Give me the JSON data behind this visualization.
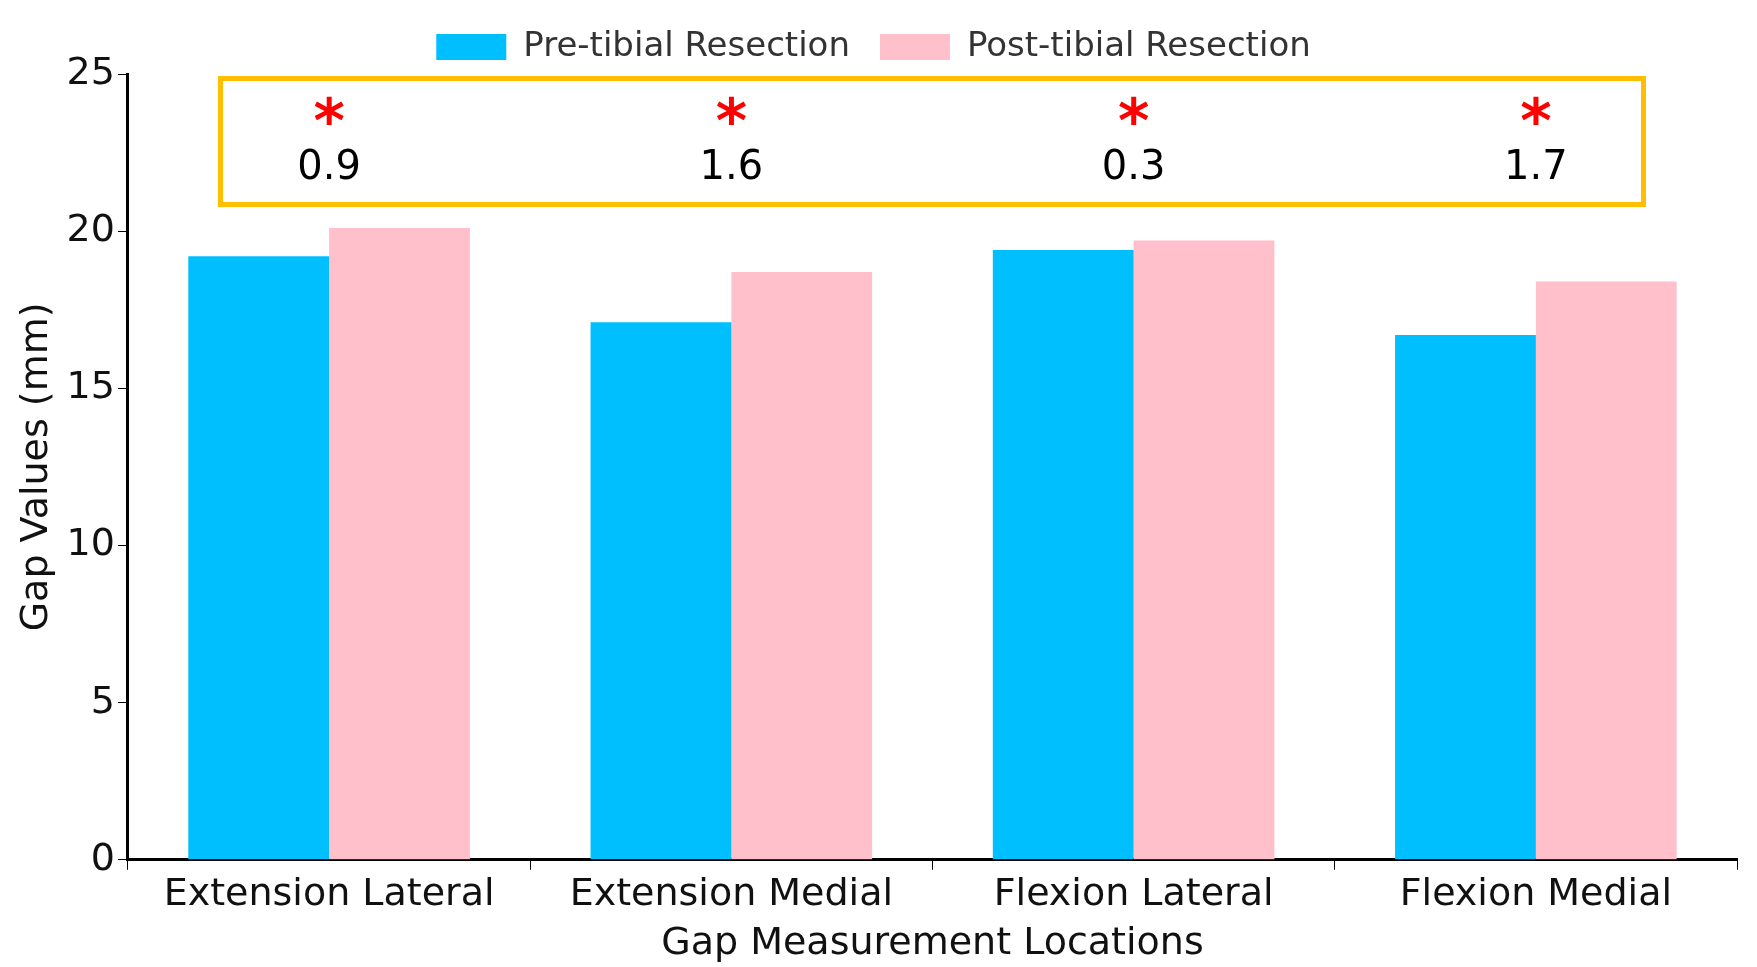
{
  "chart_data": {
    "type": "bar",
    "xlabel": "Gap Measurement Locations",
    "ylabel": "Gap Values (mm)",
    "categories": [
      "Extension Lateral",
      "Extension Medial",
      "Flexion Lateral",
      "Flexion Medial"
    ],
    "series": [
      {
        "name": "Pre-tibial Resection",
        "color": "#00bfff",
        "values": [
          19.2,
          17.1,
          19.4,
          16.7
        ]
      },
      {
        "name": "Post-tibial Resection",
        "color": "#ffc0cb",
        "values": [
          20.1,
          18.7,
          19.7,
          18.4
        ]
      }
    ],
    "ylim": [
      0,
      25
    ],
    "yticks": [
      0,
      5,
      10,
      15,
      20,
      25
    ],
    "grid": false,
    "legend": "top",
    "annotations": [
      "*",
      "0.9",
      "*",
      "1.6",
      "*",
      "0.3",
      "*",
      "1.7"
    ]
  }
}
